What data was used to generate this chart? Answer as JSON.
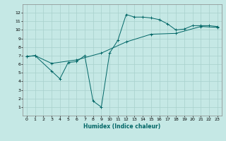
{
  "title": "",
  "xlabel": "Humidex (Indice chaleur)",
  "ylabel": "",
  "background_color": "#c5e8e5",
  "grid_color": "#a8d0cc",
  "line_color": "#006666",
  "xlim": [
    -0.5,
    23.5
  ],
  "ylim": [
    0,
    13
  ],
  "xticks": [
    0,
    1,
    2,
    3,
    4,
    5,
    6,
    7,
    8,
    9,
    10,
    11,
    12,
    13,
    14,
    15,
    16,
    17,
    18,
    19,
    20,
    21,
    22,
    23
  ],
  "yticks": [
    1,
    2,
    3,
    4,
    5,
    6,
    7,
    8,
    9,
    10,
    11,
    12
  ],
  "curve1_x": [
    0,
    1,
    3,
    4,
    5,
    6,
    7,
    8,
    9,
    10,
    11,
    12,
    13,
    14,
    15,
    16,
    17,
    18,
    19,
    20,
    21,
    22,
    23
  ],
  "curve1_y": [
    6.9,
    7.0,
    5.2,
    4.3,
    6.2,
    6.3,
    7.0,
    1.7,
    1.0,
    7.3,
    8.8,
    11.8,
    11.5,
    11.5,
    11.4,
    11.2,
    10.7,
    10.0,
    10.1,
    10.5,
    10.5,
    10.5,
    10.4
  ],
  "curve2_x": [
    0,
    1,
    3,
    6,
    9,
    12,
    15,
    18,
    21,
    23
  ],
  "curve2_y": [
    6.9,
    7.0,
    6.1,
    6.5,
    7.3,
    8.6,
    9.5,
    9.6,
    10.4,
    10.3
  ],
  "marker_size": 2.5,
  "linewidth": 0.7,
  "tick_fontsize": 4.5,
  "xlabel_fontsize": 5.5
}
